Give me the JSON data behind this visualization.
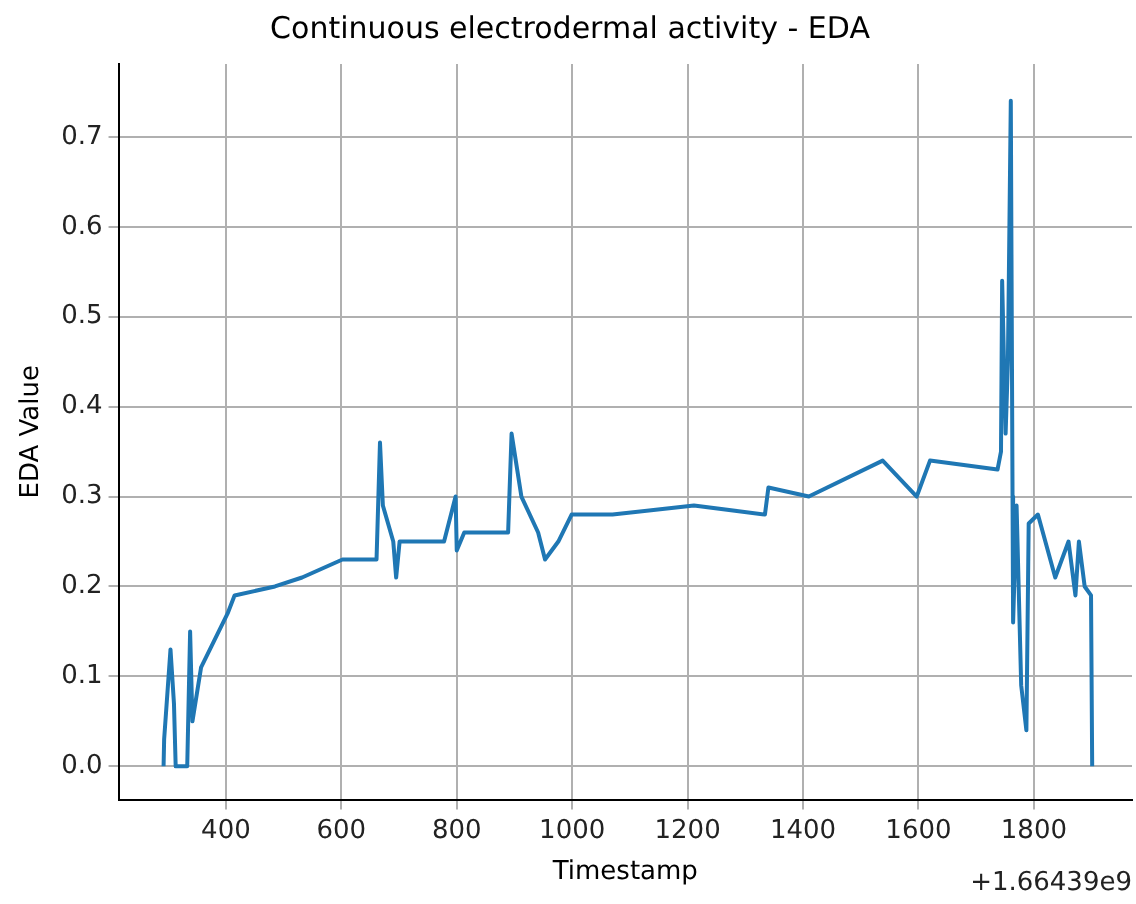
{
  "chart_data": {
    "type": "line",
    "title": "Continuous electrodermal activity - EDA",
    "xlabel": "Timestamp",
    "ylabel": "EDA Value",
    "x": [
      292,
      293,
      304,
      310,
      313,
      333,
      338,
      342,
      357,
      380,
      403,
      415,
      485,
      532,
      602,
      661,
      667,
      672,
      690,
      695,
      701,
      778,
      798,
      800,
      813,
      889,
      895,
      912,
      941,
      953,
      976,
      999,
      1035,
      1070,
      1211,
      1334,
      1340,
      1410,
      1538,
      1597,
      1620,
      1737,
      1743,
      1745,
      1751,
      1755,
      1760,
      1763,
      1764,
      1770,
      1778,
      1787,
      1791,
      1807,
      1837,
      1860,
      1872,
      1878,
      1888,
      1899,
      1901
    ],
    "series": [
      {
        "color": "#1f77b4",
        "values": [
          0,
          0.03,
          0.13,
          0.07,
          0,
          0,
          0.15,
          0.05,
          0.11,
          0.14,
          0.17,
          0.19,
          0.2,
          0.21,
          0.23,
          0.23,
          0.36,
          0.29,
          0.25,
          0.21,
          0.25,
          0.25,
          0.3,
          0.24,
          0.26,
          0.26,
          0.37,
          0.3,
          0.26,
          0.23,
          0.25,
          0.28,
          0.28,
          0.28,
          0.29,
          0.28,
          0.31,
          0.3,
          0.34,
          0.3,
          0.34,
          0.33,
          0.35,
          0.54,
          0.37,
          0.45,
          0.74,
          0.3,
          0.16,
          0.29,
          0.09,
          0.04,
          0.27,
          0.28,
          0.21,
          0.25,
          0.19,
          0.25,
          0.2,
          0.19,
          0
        ]
      }
    ],
    "xlim": [
      214,
      1970
    ],
    "ylim": [
      -0.037,
      0.781
    ],
    "xticks": [
      400,
      600,
      800,
      1000,
      1200,
      1400,
      1600,
      1800
    ],
    "yticks": [
      {
        "value": 0,
        "label": "0.0"
      },
      {
        "value": 0.1,
        "label": "0.1"
      },
      {
        "value": 0.2,
        "label": "0.2"
      },
      {
        "value": 0.3,
        "label": "0.3"
      },
      {
        "value": 0.4,
        "label": "0.4"
      },
      {
        "value": 0.5,
        "label": "0.5"
      },
      {
        "value": 0.6,
        "label": "0.6"
      },
      {
        "value": 0.7,
        "label": "0.7"
      }
    ],
    "grid": true,
    "marker": "none",
    "line_style": "solid",
    "annotations": [
      "+1.66439e9"
    ]
  }
}
